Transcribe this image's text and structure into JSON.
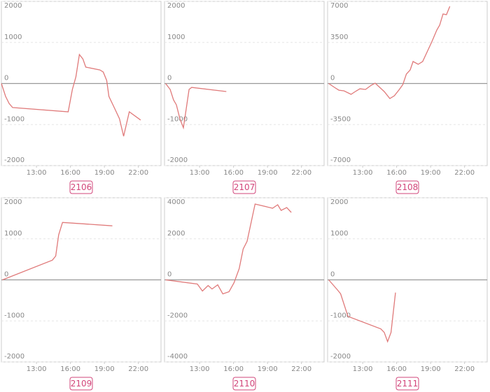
{
  "chart_data": [
    {
      "type": "line",
      "title": "2106",
      "xlim": [
        9.9,
        24
      ],
      "ylim": [
        -2000,
        2000
      ],
      "xticks": [
        {
          "value": 13,
          "label": "13:00"
        },
        {
          "value": 16,
          "label": "16:00"
        },
        {
          "value": 19,
          "label": "19:00"
        },
        {
          "value": 22,
          "label": "22:00"
        }
      ],
      "yticks": [
        2000,
        1000,
        0,
        -1000,
        -2000
      ],
      "grid": true,
      "color": "#e07a7a",
      "x": [
        9.9,
        10.27,
        10.58,
        10.89,
        15.8,
        16.17,
        16.48,
        16.79,
        17.1,
        17.35,
        18.6,
        18.9,
        19.2,
        19.4,
        19.9,
        20.33,
        20.7,
        21.2,
        22.2
      ],
      "values": [
        0,
        -315,
        -485,
        -585,
        -690,
        -145,
        160,
        705,
        600,
        400,
        330,
        280,
        75,
        -315,
        -605,
        -860,
        -1285,
        -690,
        -890
      ]
    },
    {
      "type": "line",
      "title": "2107",
      "xlim": [
        9.9,
        24
      ],
      "ylim": [
        -2000,
        2000
      ],
      "xticks": [
        {
          "value": 13,
          "label": "13:00"
        },
        {
          "value": 16,
          "label": "16:00"
        },
        {
          "value": 19,
          "label": "19:00"
        },
        {
          "value": 22,
          "label": "22:00"
        }
      ],
      "yticks": [
        2000,
        1000,
        0,
        -1000,
        -2000
      ],
      "grid": true,
      "color": "#e07a7a",
      "x": [
        10.0,
        10.4,
        10.7,
        10.95,
        11.26,
        11.57,
        11.8,
        12.07,
        12.3,
        15.36
      ],
      "values": [
        0,
        -145,
        -400,
        -520,
        -860,
        -1080,
        -655,
        -145,
        -95,
        -195
      ]
    },
    {
      "type": "line",
      "title": "2108",
      "xlim": [
        9.9,
        24
      ],
      "ylim": [
        -7000,
        7000
      ],
      "xticks": [
        {
          "value": 13,
          "label": "13:00"
        },
        {
          "value": 16,
          "label": "16:00"
        },
        {
          "value": 19,
          "label": "19:00"
        },
        {
          "value": 22,
          "label": "22:00"
        }
      ],
      "yticks": [
        7000,
        3500,
        0,
        -3500,
        -7000
      ],
      "grid": true,
      "color": "#e07a7a",
      "x": [
        10.0,
        10.5,
        10.9,
        11.35,
        11.97,
        12.35,
        12.75,
        13.25,
        13.75,
        14.1,
        14.5,
        14.9,
        15.4,
        15.8,
        16.24,
        16.55,
        16.86,
        17.2,
        17.45,
        17.9,
        18.3,
        18.7,
        19.1,
        19.55,
        19.8,
        20.1,
        20.4,
        20.7
      ],
      "values": [
        0,
        -330,
        -570,
        -625,
        -925,
        -685,
        -450,
        -505,
        -150,
        30,
        -330,
        -685,
        -1280,
        -1040,
        -505,
        -90,
        800,
        1160,
        1875,
        1640,
        1875,
        2710,
        3545,
        4555,
        4975,
        5930,
        5870,
        6580
      ]
    },
    {
      "type": "line",
      "title": "2109",
      "xlim": [
        9.9,
        24
      ],
      "ylim": [
        -2000,
        2000
      ],
      "xticks": [
        {
          "value": 13,
          "label": "13:00"
        },
        {
          "value": 16,
          "label": "16:00"
        },
        {
          "value": 19,
          "label": "19:00"
        },
        {
          "value": 22,
          "label": "22:00"
        }
      ],
      "yticks": [
        2000,
        1000,
        0,
        -1000,
        -2000
      ],
      "grid": true,
      "color": "#e07a7a",
      "x": [
        10.0,
        14.4,
        14.7,
        14.96,
        15.3,
        19.7
      ],
      "values": [
        0,
        480,
        580,
        1095,
        1400,
        1315
      ]
    },
    {
      "type": "line",
      "title": "2110",
      "xlim": [
        9.9,
        24
      ],
      "ylim": [
        -4000,
        4000
      ],
      "xticks": [
        {
          "value": 13,
          "label": "13:00"
        },
        {
          "value": 16,
          "label": "16:00"
        },
        {
          "value": 19,
          "label": "19:00"
        },
        {
          "value": 22,
          "label": "22:00"
        }
      ],
      "yticks": [
        4000,
        2000,
        0,
        -2000,
        -4000
      ],
      "grid": true,
      "color": "#e07a7a",
      "x": [
        10.0,
        12.8,
        13.25,
        13.75,
        14.1,
        14.6,
        15.05,
        15.6,
        16.05,
        16.5,
        16.85,
        17.2,
        17.9,
        19.45,
        19.9,
        20.2,
        20.7,
        21.1
      ],
      "values": [
        0,
        -205,
        -545,
        -275,
        -445,
        -240,
        -685,
        -580,
        -135,
        545,
        1505,
        1880,
        3695,
        3490,
        3660,
        3385,
        3520,
        3285
      ]
    },
    {
      "type": "line",
      "title": "2111",
      "xlim": [
        9.9,
        24
      ],
      "ylim": [
        -2000,
        2000
      ],
      "xticks": [
        {
          "value": 13,
          "label": "13:00"
        },
        {
          "value": 16,
          "label": "16:00"
        },
        {
          "value": 19,
          "label": "19:00"
        },
        {
          "value": 22,
          "label": "22:00"
        }
      ],
      "yticks": [
        2000,
        1000,
        0,
        -1000,
        -2000
      ],
      "grid": true,
      "color": "#e07a7a",
      "x": [
        10.0,
        10.8,
        11.05,
        11.7,
        14.6,
        14.9,
        15.2,
        15.5,
        15.9
      ],
      "values": [
        0,
        -255,
        -340,
        -890,
        -1195,
        -1280,
        -1505,
        -1280,
        -310
      ]
    }
  ]
}
